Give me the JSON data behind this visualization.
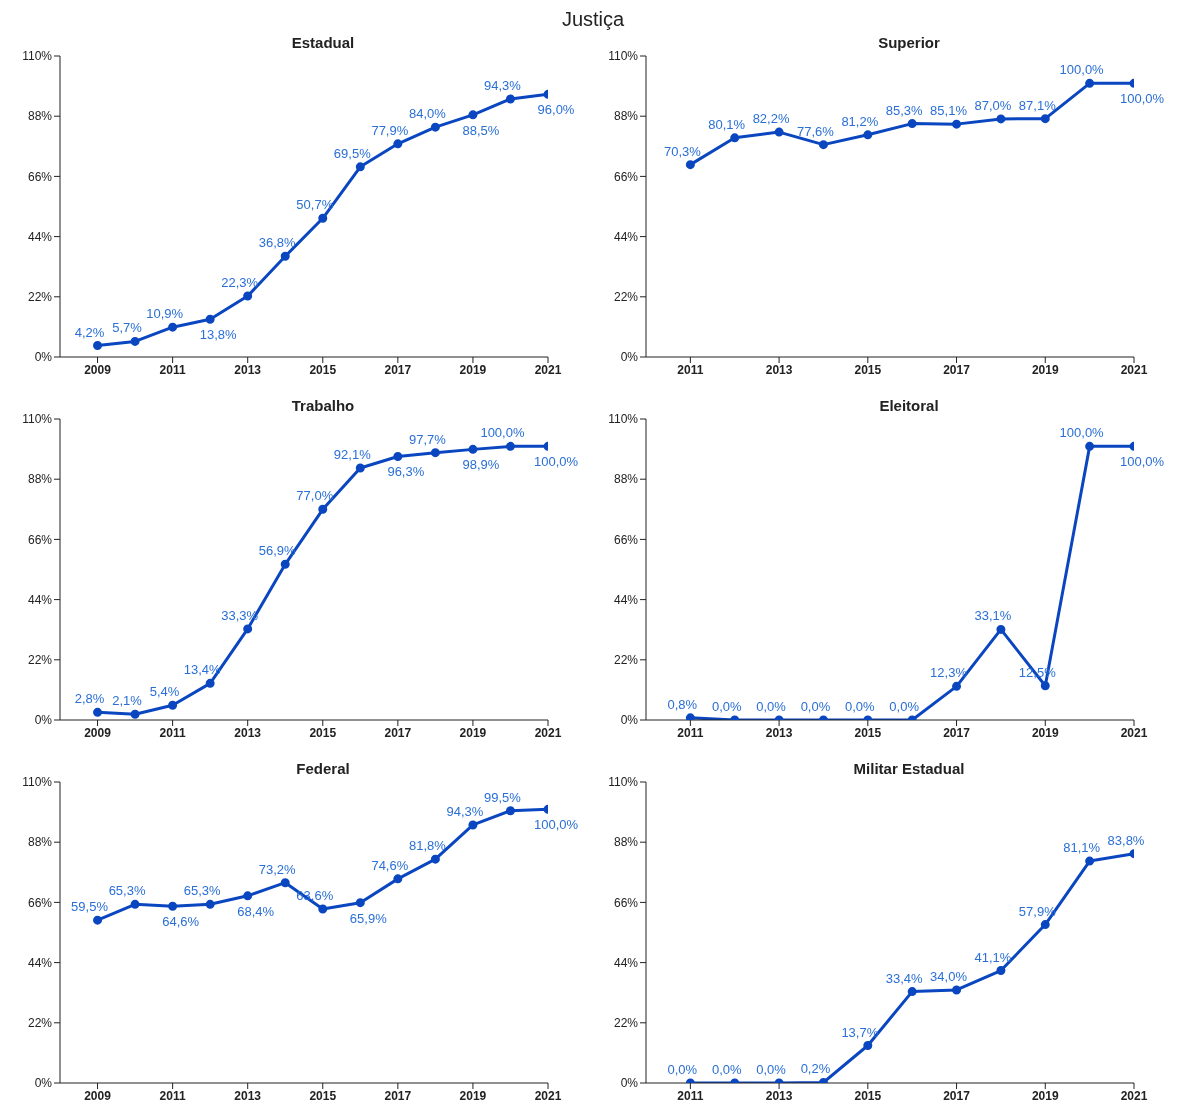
{
  "chart_data": [
    {
      "type": "line",
      "title": "Estadual",
      "annotations": [
        "Justiça"
      ],
      "x": [
        2009,
        2010,
        2011,
        2012,
        2013,
        2014,
        2015,
        2016,
        2017,
        2018,
        2019,
        2020,
        2021
      ],
      "series": [
        {
          "color": "#0a46c0",
          "values": [
            4.2,
            5.7,
            10.9,
            13.8,
            22.3,
            36.8,
            50.7,
            69.5,
            77.9,
            84.0,
            88.5,
            94.3,
            96.0
          ],
          "value_labels": [
            "4,2%",
            "5,7%",
            "10,9%",
            "13,8%",
            "22,3%",
            "36,8%",
            "50,7%",
            "69,5%",
            "77,9%",
            "84,0%",
            "88,5%",
            "94,3%",
            "96,0%"
          ]
        }
      ],
      "xlim": [
        2008,
        2021
      ],
      "xticks": [
        2009,
        2011,
        2013,
        2015,
        2017,
        2019,
        2021
      ],
      "ylim": [
        0,
        110
      ],
      "yticks": [
        {
          "value": 0,
          "label": "0%"
        },
        {
          "value": 22,
          "label": "22%"
        },
        {
          "value": 44,
          "label": "44%"
        },
        {
          "value": 66,
          "label": "66%"
        },
        {
          "value": 88,
          "label": "88%"
        },
        {
          "value": 110,
          "label": "110%"
        }
      ],
      "marker": "circle",
      "grid": false,
      "legend": false
    },
    {
      "type": "line",
      "title": "Superior",
      "x": [
        2011,
        2012,
        2013,
        2014,
        2015,
        2016,
        2017,
        2018,
        2019,
        2020,
        2021
      ],
      "series": [
        {
          "color": "#0a46c0",
          "values": [
            70.3,
            80.1,
            82.2,
            77.6,
            81.2,
            85.3,
            85.1,
            87.0,
            87.1,
            100.0,
            100.0
          ],
          "value_labels": [
            "70,3%",
            "80,1%",
            "82,2%",
            "77,6%",
            "81,2%",
            "85,3%",
            "85,1%",
            "87,0%",
            "87,1%",
            "100,0%",
            "100,0%"
          ]
        }
      ],
      "xlim": [
        2010,
        2021
      ],
      "xticks": [
        2011,
        2013,
        2015,
        2017,
        2019,
        2021
      ],
      "ylim": [
        0,
        110
      ],
      "yticks": [
        {
          "value": 0,
          "label": "0%"
        },
        {
          "value": 22,
          "label": "22%"
        },
        {
          "value": 44,
          "label": "44%"
        },
        {
          "value": 66,
          "label": "66%"
        },
        {
          "value": 88,
          "label": "88%"
        },
        {
          "value": 110,
          "label": "110%"
        }
      ],
      "marker": "circle",
      "grid": false,
      "legend": false
    },
    {
      "type": "line",
      "title": "Trabalho",
      "x": [
        2009,
        2010,
        2011,
        2012,
        2013,
        2014,
        2015,
        2016,
        2017,
        2018,
        2019,
        2020,
        2021
      ],
      "series": [
        {
          "color": "#0a46c0",
          "values": [
            2.8,
            2.1,
            5.4,
            13.4,
            33.3,
            56.9,
            77.0,
            92.1,
            96.3,
            97.7,
            98.9,
            100.0,
            100.0
          ],
          "value_labels": [
            "2,8%",
            "2,1%",
            "5,4%",
            "13,4%",
            "33,3%",
            "56,9%",
            "77,0%",
            "92,1%",
            "96,3%",
            "97,7%",
            "98,9%",
            "100,0%",
            "100,0%"
          ]
        }
      ],
      "xlim": [
        2008,
        2021
      ],
      "xticks": [
        2009,
        2011,
        2013,
        2015,
        2017,
        2019,
        2021
      ],
      "ylim": [
        0,
        110
      ],
      "yticks": [
        {
          "value": 0,
          "label": "0%"
        },
        {
          "value": 22,
          "label": "22%"
        },
        {
          "value": 44,
          "label": "44%"
        },
        {
          "value": 66,
          "label": "66%"
        },
        {
          "value": 88,
          "label": "88%"
        },
        {
          "value": 110,
          "label": "110%"
        }
      ],
      "marker": "circle",
      "grid": false,
      "legend": false
    },
    {
      "type": "line",
      "title": "Eleitoral",
      "x": [
        2011,
        2012,
        2013,
        2014,
        2015,
        2016,
        2017,
        2018,
        2019,
        2020,
        2021
      ],
      "series": [
        {
          "color": "#0a46c0",
          "values": [
            0.8,
            0.0,
            0.0,
            0.0,
            0.0,
            0.0,
            12.3,
            33.1,
            12.5,
            100.0,
            100.0
          ],
          "value_labels": [
            "0,8%",
            "0,0%",
            "0,0%",
            "0,0%",
            "0,0%",
            "0,0%",
            "12,3%",
            "33,1%",
            "12,5%",
            "100,0%",
            "100,0%"
          ]
        }
      ],
      "xlim": [
        2010,
        2021
      ],
      "xticks": [
        2011,
        2013,
        2015,
        2017,
        2019,
        2021
      ],
      "ylim": [
        0,
        110
      ],
      "yticks": [
        {
          "value": 0,
          "label": "0%"
        },
        {
          "value": 22,
          "label": "22%"
        },
        {
          "value": 44,
          "label": "44%"
        },
        {
          "value": 66,
          "label": "66%"
        },
        {
          "value": 88,
          "label": "88%"
        },
        {
          "value": 110,
          "label": "110%"
        }
      ],
      "marker": "circle",
      "grid": false,
      "legend": false
    },
    {
      "type": "line",
      "title": "Federal",
      "x": [
        2009,
        2010,
        2011,
        2012,
        2013,
        2014,
        2015,
        2016,
        2017,
        2018,
        2019,
        2020,
        2021
      ],
      "series": [
        {
          "color": "#0a46c0",
          "values": [
            59.5,
            65.3,
            64.6,
            65.3,
            68.4,
            73.2,
            63.6,
            65.9,
            74.6,
            81.8,
            94.3,
            99.5,
            100.0
          ],
          "value_labels": [
            "59,5%",
            "65,3%",
            "64,6%",
            "65,3%",
            "68,4%",
            "73,2%",
            "63,6%",
            "65,9%",
            "74,6%",
            "81,8%",
            "94,3%",
            "99,5%",
            "100,0%"
          ]
        }
      ],
      "xlim": [
        2008,
        2021
      ],
      "xticks": [
        2009,
        2011,
        2013,
        2015,
        2017,
        2019,
        2021
      ],
      "ylim": [
        0,
        110
      ],
      "yticks": [
        {
          "value": 0,
          "label": "0%"
        },
        {
          "value": 22,
          "label": "22%"
        },
        {
          "value": 44,
          "label": "44%"
        },
        {
          "value": 66,
          "label": "66%"
        },
        {
          "value": 88,
          "label": "88%"
        },
        {
          "value": 110,
          "label": "110%"
        }
      ],
      "marker": "circle",
      "grid": false,
      "legend": false
    },
    {
      "type": "line",
      "title": "Militar Estadual",
      "x": [
        2011,
        2012,
        2013,
        2014,
        2015,
        2016,
        2017,
        2018,
        2019,
        2020,
        2021
      ],
      "series": [
        {
          "color": "#0a46c0",
          "values": [
            0.0,
            0.0,
            0.0,
            0.2,
            13.7,
            33.4,
            34.0,
            41.1,
            57.9,
            81.1,
            83.8
          ],
          "value_labels": [
            "0,0%",
            "0,0%",
            "0,0%",
            "0,2%",
            "13,7%",
            "33,4%",
            "34,0%",
            "41,1%",
            "57,9%",
            "81,1%",
            "83,8%"
          ]
        }
      ],
      "xlim": [
        2010,
        2021
      ],
      "xticks": [
        2011,
        2013,
        2015,
        2017,
        2019,
        2021
      ],
      "ylim": [
        0,
        110
      ],
      "yticks": [
        {
          "value": 0,
          "label": "0%"
        },
        {
          "value": 22,
          "label": "22%"
        },
        {
          "value": 44,
          "label": "44%"
        },
        {
          "value": 66,
          "label": "66%"
        },
        {
          "value": 88,
          "label": "88%"
        },
        {
          "value": 110,
          "label": "110%"
        }
      ],
      "marker": "circle",
      "grid": false,
      "legend": false
    }
  ]
}
